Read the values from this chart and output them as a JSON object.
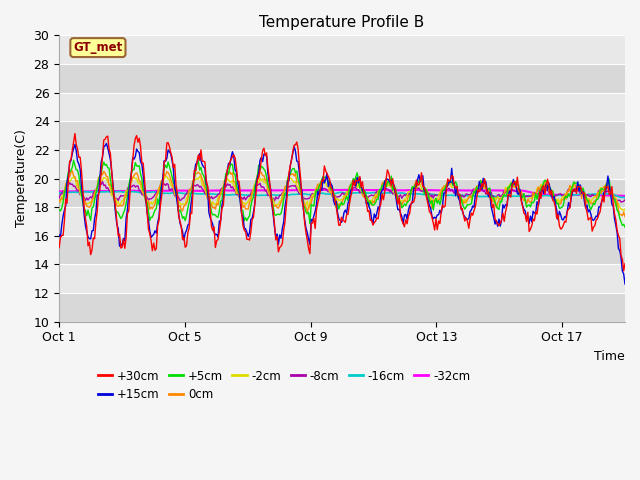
{
  "title": "Temperature Profile B",
  "xlabel": "Time",
  "ylabel": "Temperature(C)",
  "ylim": [
    10,
    30
  ],
  "yticks": [
    10,
    12,
    14,
    16,
    18,
    20,
    22,
    24,
    26,
    28,
    30
  ],
  "plot_bg_color": "#e8e8e8",
  "legend_label": "GT_met",
  "legend_box_color": "#ffff99",
  "legend_box_edge": "#996633",
  "series": {
    "+30cm": {
      "color": "#ff0000",
      "lw": 1.0
    },
    "+15cm": {
      "color": "#0000dd",
      "lw": 1.0
    },
    "+5cm": {
      "color": "#00dd00",
      "lw": 1.0
    },
    "0cm": {
      "color": "#ff8800",
      "lw": 1.0
    },
    "-2cm": {
      "color": "#dddd00",
      "lw": 1.0
    },
    "-8cm": {
      "color": "#aa00aa",
      "lw": 1.0
    },
    "-16cm": {
      "color": "#00cccc",
      "lw": 1.2
    },
    "-32cm": {
      "color": "#ff00ff",
      "lw": 1.5
    }
  },
  "x_tick_labels": [
    "Oct 1",
    "Oct 5",
    "Oct 9",
    "Oct 13",
    "Oct 17"
  ],
  "x_tick_positions": [
    0,
    4,
    8,
    12,
    16
  ],
  "n_days": 18,
  "hrs_per_day": 24
}
